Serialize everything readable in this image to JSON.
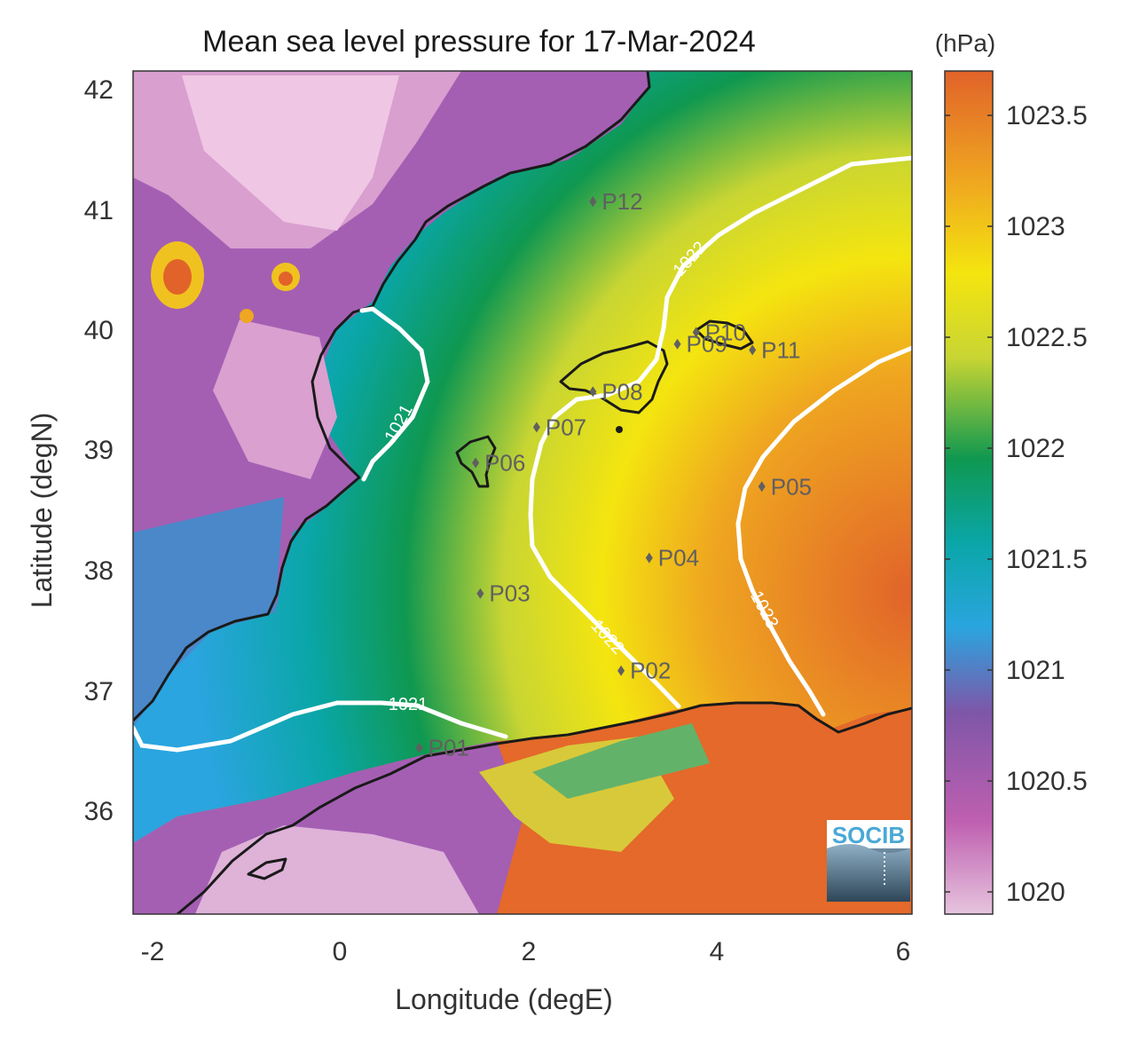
{
  "title": "Mean sea level pressure for 17-Mar-2024",
  "xlabel": "Longitude (degE)",
  "ylabel": "Latitude (degN)",
  "x_ticks": [
    "-2",
    "0",
    "2",
    "4",
    "6"
  ],
  "y_ticks": [
    "42",
    "41",
    "40",
    "39",
    "38",
    "37",
    "36"
  ],
  "colorbar": {
    "unit": "(hPa)",
    "ticks": [
      "1023.5",
      "1023",
      "1022.5",
      "1022",
      "1021.5",
      "1021",
      "1020.5",
      "1020"
    ],
    "range": [
      1019.9,
      1023.7
    ],
    "colors": [
      "#e6c4de",
      "#bf5fb0",
      "#7e56a8",
      "#2aa5df",
      "#0aa6a8",
      "#0f9850",
      "#c8d533",
      "#f4e50f",
      "#efa620",
      "#e1632a"
    ]
  },
  "map_extent": {
    "lon": [
      -2.2,
      6.1
    ],
    "lat": [
      35.1,
      42.2
    ]
  },
  "contours": [
    {
      "label": "1021",
      "level": 1021
    },
    {
      "label": "1022",
      "level": 1022
    },
    {
      "label": "1023",
      "level": 1023
    }
  ],
  "points": [
    {
      "name": "P01",
      "lon": 0.85,
      "lat": 36.5
    },
    {
      "name": "P02",
      "lon": 3.0,
      "lat": 37.15
    },
    {
      "name": "P03",
      "lon": 1.5,
      "lat": 37.8
    },
    {
      "name": "P04",
      "lon": 3.3,
      "lat": 38.1
    },
    {
      "name": "P05",
      "lon": 4.5,
      "lat": 38.7
    },
    {
      "name": "P06",
      "lon": 1.45,
      "lat": 38.9
    },
    {
      "name": "P07",
      "lon": 2.1,
      "lat": 39.2
    },
    {
      "name": "P08",
      "lon": 2.7,
      "lat": 39.5
    },
    {
      "name": "P09",
      "lon": 3.6,
      "lat": 39.9
    },
    {
      "name": "P10",
      "lon": 3.8,
      "lat": 40.0
    },
    {
      "name": "P11",
      "lon": 4.4,
      "lat": 39.85
    },
    {
      "name": "P12",
      "lon": 2.7,
      "lat": 41.1
    }
  ],
  "logo": {
    "text": "SOCIB",
    "bg_color": "#5f7f96",
    "text_color": "#4aa8d6"
  }
}
